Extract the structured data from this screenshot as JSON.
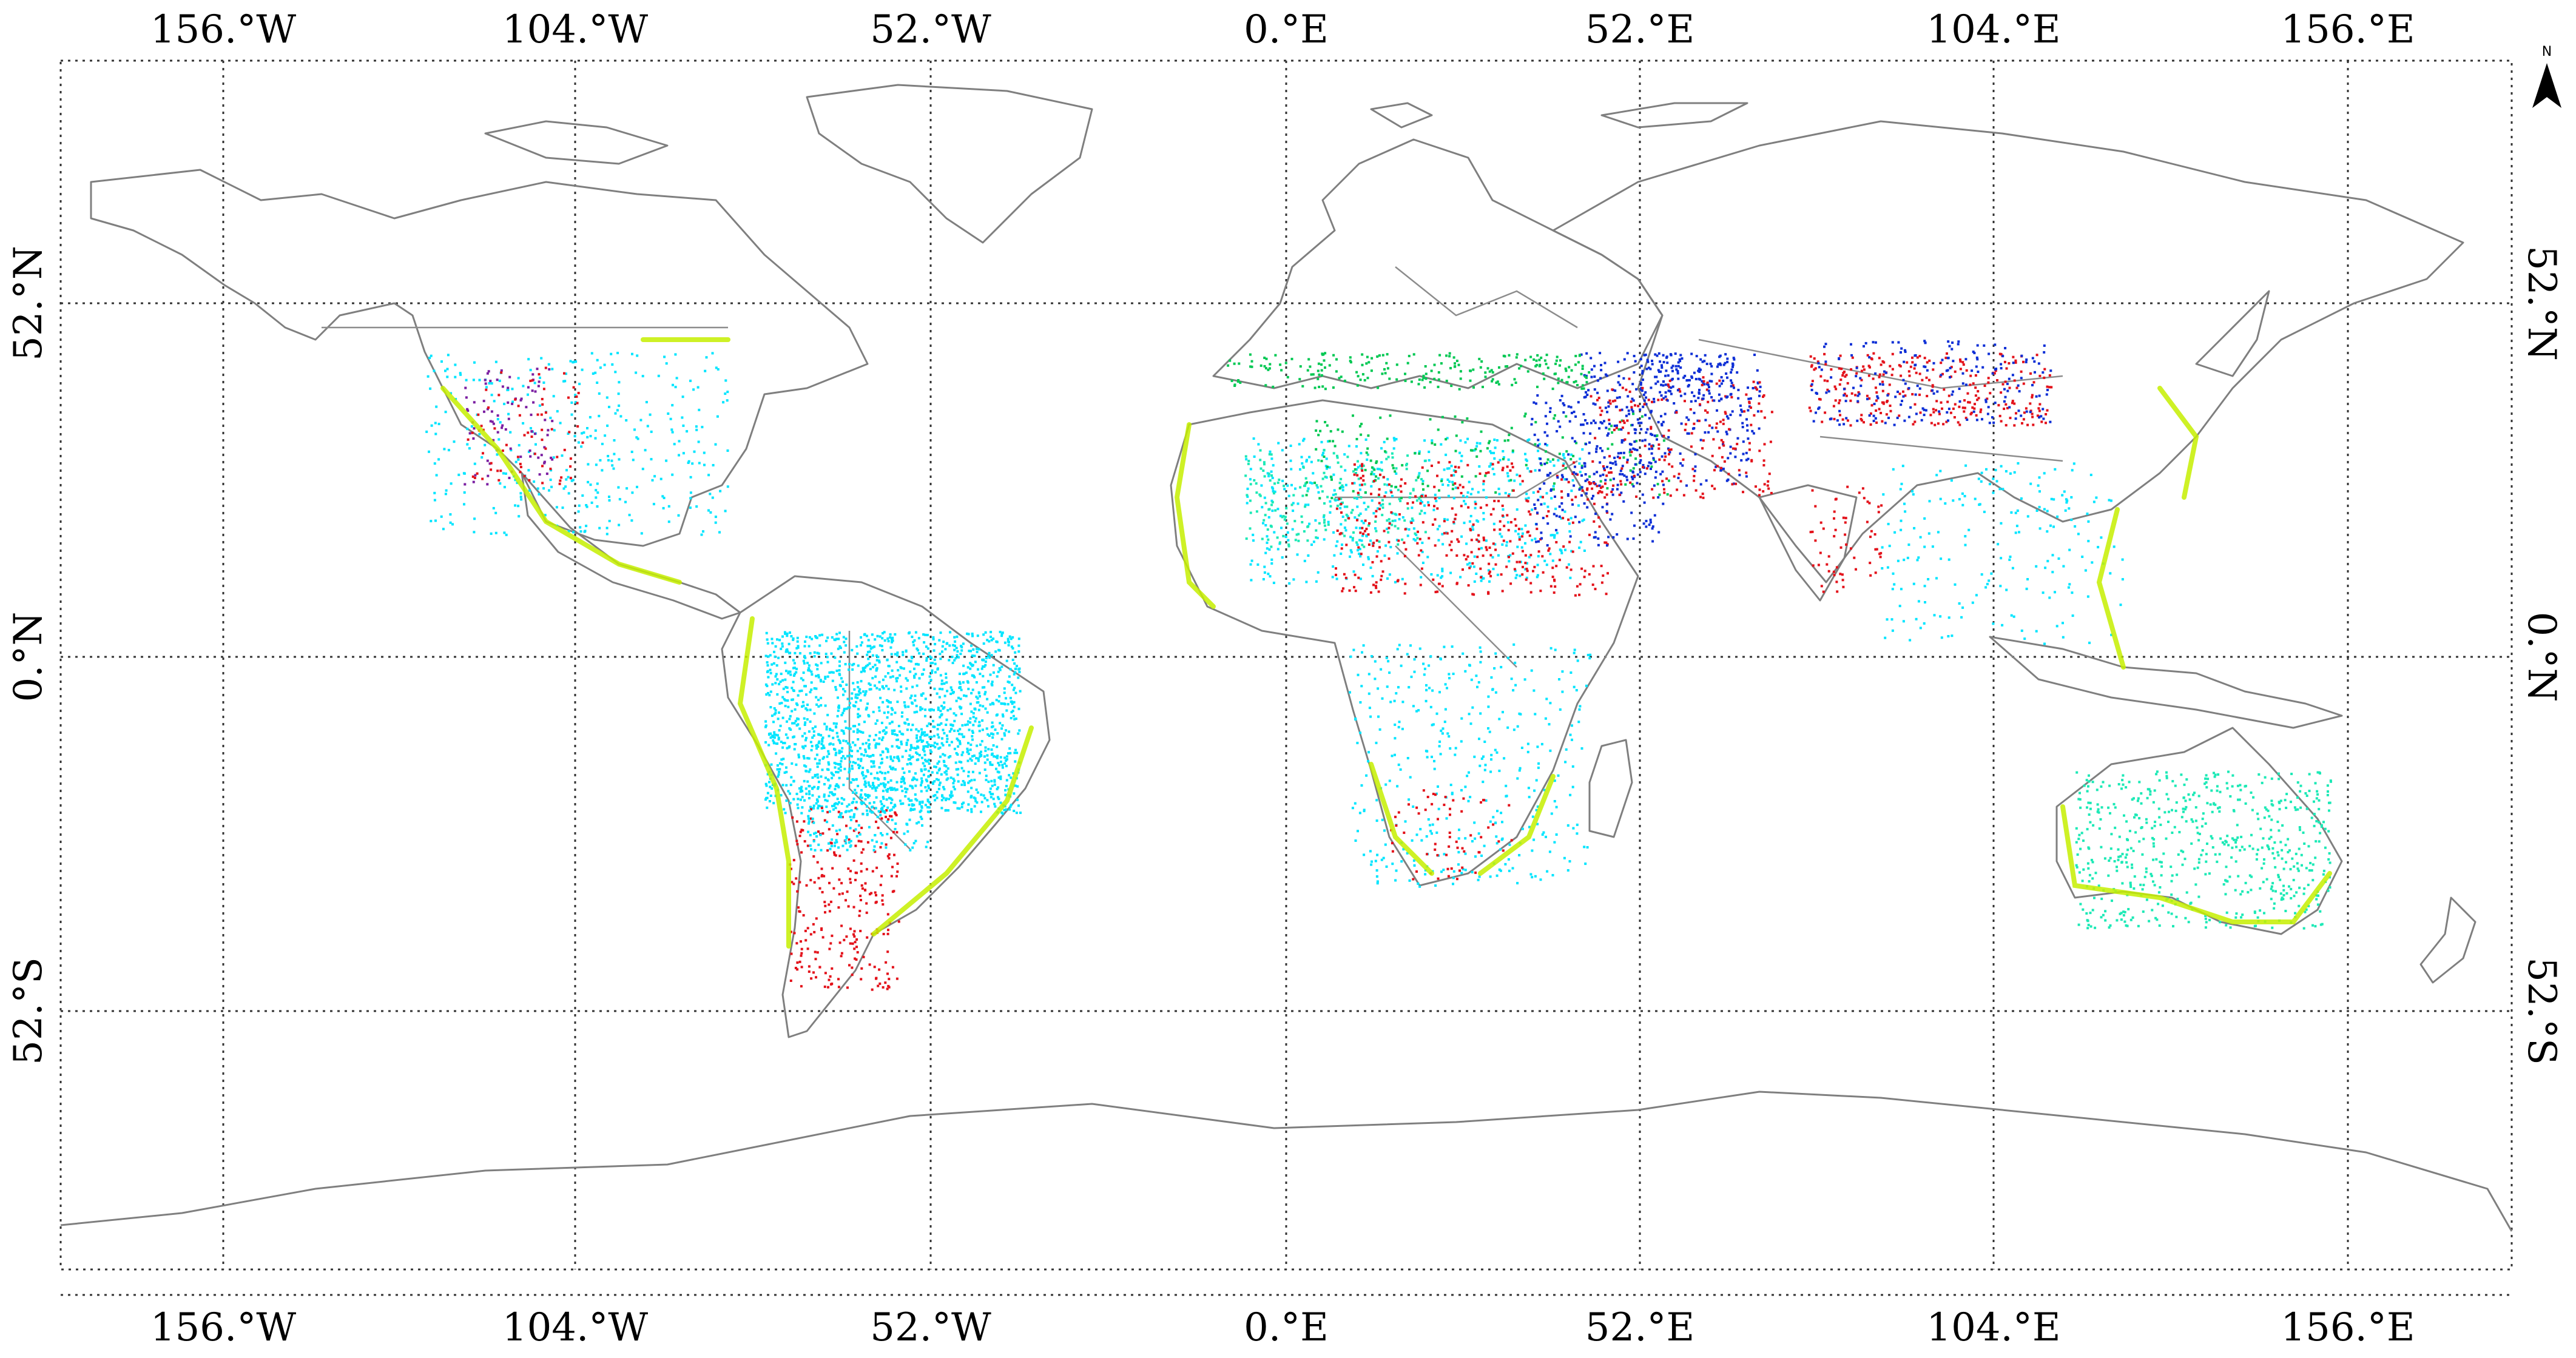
{
  "map": {
    "lon_labels": [
      "156.°W",
      "104.°W",
      "52.°W",
      "0.°E",
      "52.°E",
      "104.°E",
      "156.°E"
    ],
    "lat_labels": [
      "52.°N",
      "0.°N",
      "52.°S"
    ],
    "north_arrow_label": "N",
    "legend_colors": {
      "cyan": "#00e5ff",
      "aqua_green": "#1de9b6",
      "green": "#00c853",
      "blue": "#0d2fd6",
      "red": "#e3121b",
      "purple": "#7b1fa2",
      "yellow_green": "#c6ef00",
      "coast": "#7f7f7f"
    }
  }
}
